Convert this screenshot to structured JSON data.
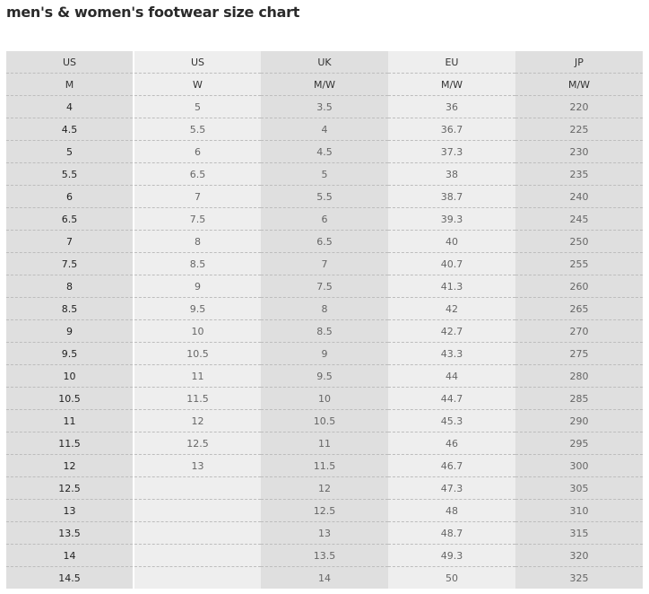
{
  "title": "men's & women's footwear size chart",
  "header_rows": [
    [
      "US",
      "US",
      "UK",
      "EU",
      "JP"
    ],
    [
      "M",
      "W",
      "M/W",
      "M/W",
      "M/W"
    ]
  ],
  "rows": [
    [
      "4",
      "5",
      "3.5",
      "36",
      "220"
    ],
    [
      "4.5",
      "5.5",
      "4",
      "36.7",
      "225"
    ],
    [
      "5",
      "6",
      "4.5",
      "37.3",
      "230"
    ],
    [
      "5.5",
      "6.5",
      "5",
      "38",
      "235"
    ],
    [
      "6",
      "7",
      "5.5",
      "38.7",
      "240"
    ],
    [
      "6.5",
      "7.5",
      "6",
      "39.3",
      "245"
    ],
    [
      "7",
      "8",
      "6.5",
      "40",
      "250"
    ],
    [
      "7.5",
      "8.5",
      "7",
      "40.7",
      "255"
    ],
    [
      "8",
      "9",
      "7.5",
      "41.3",
      "260"
    ],
    [
      "8.5",
      "9.5",
      "8",
      "42",
      "265"
    ],
    [
      "9",
      "10",
      "8.5",
      "42.7",
      "270"
    ],
    [
      "9.5",
      "10.5",
      "9",
      "43.3",
      "275"
    ],
    [
      "10",
      "11",
      "9.5",
      "44",
      "280"
    ],
    [
      "10.5",
      "11.5",
      "10",
      "44.7",
      "285"
    ],
    [
      "11",
      "12",
      "10.5",
      "45.3",
      "290"
    ],
    [
      "11.5",
      "12.5",
      "11",
      "46",
      "295"
    ],
    [
      "12",
      "13",
      "11.5",
      "46.7",
      "300"
    ],
    [
      "12.5",
      "",
      "12",
      "47.3",
      "305"
    ],
    [
      "13",
      "",
      "12.5",
      "48",
      "310"
    ],
    [
      "13.5",
      "",
      "13",
      "48.7",
      "315"
    ],
    [
      "14",
      "",
      "13.5",
      "49.3",
      "320"
    ],
    [
      "14.5",
      "",
      "14",
      "50",
      "325"
    ]
  ]
}
